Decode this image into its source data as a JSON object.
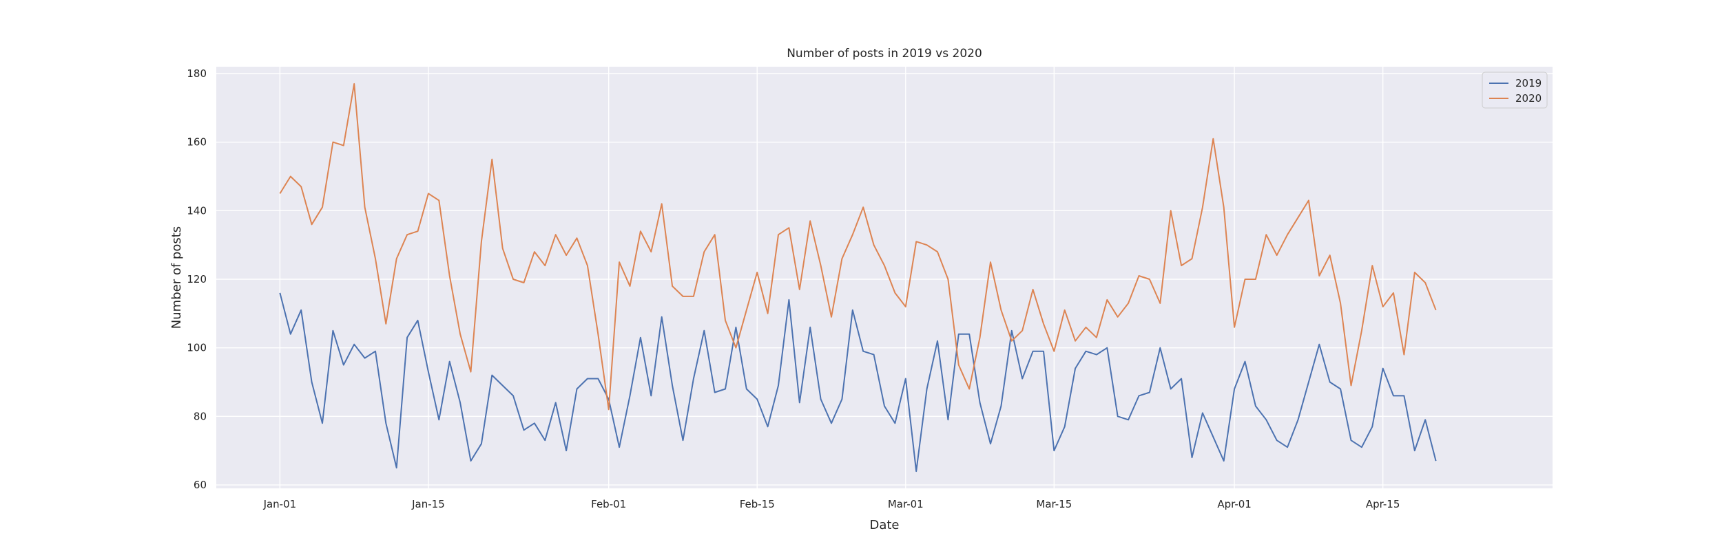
{
  "chart_data": {
    "type": "line",
    "title": "Number of posts in 2019 vs 2020",
    "xlabel": "Date",
    "ylabel": "Number of posts",
    "x_start": "Jan-01",
    "x_end": "Apr-21",
    "xlim": [
      "Dec-26",
      "May-01"
    ],
    "ylim": [
      59,
      182
    ],
    "x_ticks": [
      "Jan-01",
      "Jan-15",
      "Feb-01",
      "Feb-15",
      "Mar-01",
      "Mar-15",
      "Apr-01",
      "Apr-15"
    ],
    "y_ticks": [
      60,
      80,
      100,
      120,
      140,
      160,
      180
    ],
    "grid": true,
    "legend_position": "upper right",
    "series": [
      {
        "name": "2019",
        "color": "#4c72b0",
        "values": [
          116,
          104,
          111,
          90,
          78,
          105,
          95,
          101,
          97,
          99,
          78,
          65,
          103,
          108,
          93,
          79,
          96,
          84,
          67,
          72,
          92,
          89,
          86,
          76,
          78,
          73,
          84,
          70,
          88,
          91,
          91,
          85,
          71,
          86,
          103,
          86,
          109,
          89,
          73,
          91,
          105,
          87,
          88,
          106,
          88,
          85,
          77,
          89,
          114,
          84,
          106,
          85,
          78,
          85,
          111,
          99,
          98,
          83,
          78,
          91,
          64,
          88,
          102,
          79,
          104,
          104,
          84,
          72,
          83,
          105,
          91,
          99,
          99,
          70,
          77,
          94,
          99,
          98,
          100,
          80,
          79,
          86,
          87,
          100,
          88,
          91,
          68,
          81,
          74,
          67,
          88,
          96,
          83,
          79,
          73,
          71,
          79,
          90,
          101,
          90,
          88,
          73,
          71,
          77,
          94,
          86,
          86,
          70,
          79,
          67
        ]
      },
      {
        "name": "2020",
        "color": "#dd8452",
        "values": [
          145,
          150,
          147,
          136,
          141,
          160,
          159,
          177,
          141,
          126,
          107,
          126,
          133,
          134,
          145,
          143,
          121,
          104,
          93,
          131,
          155,
          129,
          120,
          119,
          128,
          124,
          133,
          127,
          132,
          124,
          104,
          82,
          125,
          118,
          134,
          128,
          142,
          118,
          115,
          115,
          128,
          133,
          108,
          100,
          111,
          122,
          110,
          133,
          135,
          117,
          137,
          124,
          109,
          126,
          133,
          141,
          130,
          124,
          116,
          112,
          131,
          130,
          128,
          120,
          95,
          88,
          103,
          125,
          111,
          102,
          105,
          117,
          107,
          99,
          111,
          102,
          106,
          103,
          114,
          109,
          113,
          121,
          120,
          113,
          140,
          124,
          126,
          141,
          161,
          141,
          106,
          120,
          120,
          133,
          127,
          133,
          138,
          143,
          121,
          127,
          113,
          89,
          105,
          124,
          112,
          116,
          98,
          122,
          119,
          111
        ]
      }
    ]
  }
}
